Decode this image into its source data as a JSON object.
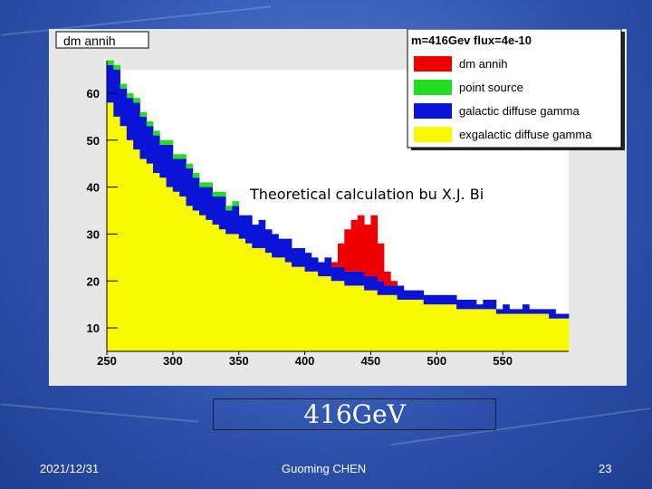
{
  "slide": {
    "caption": "416GeV",
    "date": "2021/12/31",
    "author": "Guoming CHEN",
    "page_number": "23"
  },
  "colors": {
    "dm_annih": "#ee0000",
    "point_source": "#22dd22",
    "galactic": "#0a14d6",
    "exgalactic": "#f8f800",
    "background": "#2b4fa8"
  },
  "chart_data": {
    "type": "area",
    "title": "dm annih",
    "annotation": "Theoretical calculation bu X.J. Bi",
    "legend": {
      "header": "m=416Gev flux=4e-10",
      "placement": "top-right",
      "entries": [
        "dm annih",
        "point source",
        "galactic diffuse gamma",
        "exgalactic diffuse gamma"
      ]
    },
    "xlim": [
      250,
      600
    ],
    "ylim": [
      5,
      65
    ],
    "xticks": [
      250,
      300,
      350,
      400,
      450,
      500,
      550
    ],
    "yticks": [
      10,
      20,
      30,
      40,
      50,
      60
    ],
    "bin_width": 5,
    "stacked": true,
    "x": [
      250,
      255,
      260,
      265,
      270,
      275,
      280,
      285,
      290,
      295,
      300,
      305,
      310,
      315,
      320,
      325,
      330,
      335,
      340,
      345,
      350,
      355,
      360,
      365,
      370,
      375,
      380,
      385,
      390,
      395,
      400,
      405,
      410,
      415,
      420,
      425,
      430,
      435,
      440,
      445,
      450,
      455,
      460,
      465,
      470,
      475,
      480,
      485,
      490,
      495,
      500,
      505,
      510,
      515,
      520,
      525,
      530,
      535,
      540,
      545,
      550,
      555,
      560,
      565,
      570,
      575,
      580,
      585,
      590,
      595
    ],
    "series": [
      {
        "name": "exgalactic diffuse gamma",
        "values": [
          53,
          50,
          48,
          45,
          43,
          41,
          40,
          38,
          37,
          35,
          34,
          33,
          31,
          30,
          29,
          28,
          27,
          26,
          25,
          25,
          24,
          23,
          22,
          22,
          21,
          20,
          20,
          19,
          18,
          18,
          17,
          17,
          16,
          16,
          15,
          15,
          14,
          14,
          14,
          13,
          13,
          12,
          12,
          12,
          11,
          11,
          11,
          11,
          10,
          10,
          10,
          10,
          10,
          9,
          9,
          9,
          9,
          9,
          9,
          8,
          8,
          8,
          8,
          8,
          8,
          8,
          8,
          7,
          7,
          7
        ]
      },
      {
        "name": "galactic diffuse gamma",
        "values": [
          8,
          10,
          8,
          9,
          10,
          9,
          8,
          8,
          7,
          9,
          7,
          8,
          8,
          7,
          6,
          7,
          6,
          7,
          5,
          6,
          5,
          6,
          5,
          6,
          5,
          5,
          4,
          5,
          4,
          4,
          4,
          3,
          3,
          4,
          3,
          3,
          3,
          3,
          3,
          3,
          3,
          3,
          2,
          2,
          3,
          2,
          2,
          2,
          2,
          2,
          2,
          2,
          2,
          2,
          2,
          2,
          1,
          2,
          2,
          1,
          2,
          1,
          1,
          2,
          1,
          1,
          1,
          2,
          1,
          1
        ]
      },
      {
        "name": "point source",
        "values": [
          1,
          1,
          1,
          1,
          1,
          1,
          1,
          1,
          1,
          1,
          1,
          1,
          1,
          1,
          1,
          1,
          1,
          1,
          1,
          1,
          0,
          0,
          0,
          0,
          0,
          0,
          0,
          0,
          0,
          0,
          0,
          0,
          0,
          0,
          0,
          0,
          0,
          0,
          0,
          0,
          0,
          0,
          0,
          0,
          0,
          0,
          0,
          0,
          0,
          0,
          0,
          0,
          0,
          0,
          0,
          0,
          0,
          0,
          0,
          0,
          0,
          0,
          0,
          0,
          0,
          0,
          0,
          0,
          0,
          0
        ]
      },
      {
        "name": "dm annih",
        "values": [
          0,
          0,
          0,
          0,
          0,
          0,
          0,
          0,
          0,
          0,
          0,
          0,
          0,
          0,
          0,
          0,
          0,
          0,
          0,
          0,
          0,
          0,
          0,
          0,
          0,
          0,
          0,
          0,
          0,
          0,
          0,
          0,
          0,
          0,
          1,
          5,
          9,
          11,
          12,
          11,
          13,
          8,
          3,
          1,
          0,
          0,
          0,
          0,
          0,
          0,
          0,
          0,
          0,
          0,
          0,
          0,
          0,
          0,
          0,
          0,
          0,
          0,
          0,
          0,
          0,
          0,
          0,
          0,
          0,
          0
        ]
      }
    ]
  }
}
